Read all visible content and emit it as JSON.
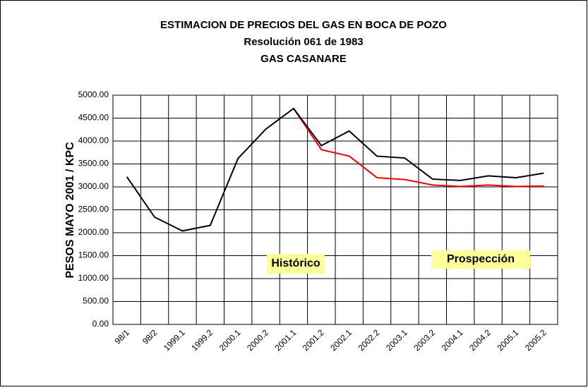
{
  "chart_data": {
    "type": "line",
    "title": [
      "ESTIMACION DE PRECIOS DEL GAS EN BOCA DE POZO",
      "Resolución 061 de 1983",
      "GAS CASANARE"
    ],
    "y_label": "PESOS MAYO 2001 / KPC",
    "categories": [
      "98/1",
      "98/2",
      "1999.1",
      "1999.2",
      "2000.1",
      "2000.2",
      "2001.1",
      "2001.2",
      "2002.1",
      "2002.2",
      "2003.1",
      "2003.2",
      "2004.1",
      "2004.2",
      "2005.1",
      "2005.2"
    ],
    "series": [
      {
        "color": "#ff0000",
        "values": [
          null,
          null,
          null,
          null,
          null,
          null,
          4710,
          3810,
          3670,
          3200,
          3160,
          3040,
          3010,
          3040,
          3010,
          3020
        ]
      },
      {
        "color": "#000000",
        "values": [
          3220,
          2340,
          2040,
          2160,
          3620,
          4260,
          4710,
          3900,
          4220,
          3670,
          3630,
          3170,
          3140,
          3240,
          3200,
          3300
        ]
      }
    ],
    "ylim": [
      0,
      5000
    ],
    "yticks": [
      {
        "value": 0,
        "label": "0.00"
      },
      {
        "value": 500,
        "label": "500.00"
      },
      {
        "value": 1000,
        "label": "1000.00"
      },
      {
        "value": 1500,
        "label": "1500.00"
      },
      {
        "value": 2000,
        "label": "2000.00"
      },
      {
        "value": 2500,
        "label": "2500.00"
      },
      {
        "value": 3000,
        "label": "3000.00"
      },
      {
        "value": 3500,
        "label": "3500.00"
      },
      {
        "value": 4000,
        "label": "4000.00"
      },
      {
        "value": 4500,
        "label": "4500.00"
      },
      {
        "value": 5000,
        "label": "5000.00"
      }
    ],
    "grid": true,
    "annotations": [
      "Histórico",
      "Prospección"
    ]
  }
}
